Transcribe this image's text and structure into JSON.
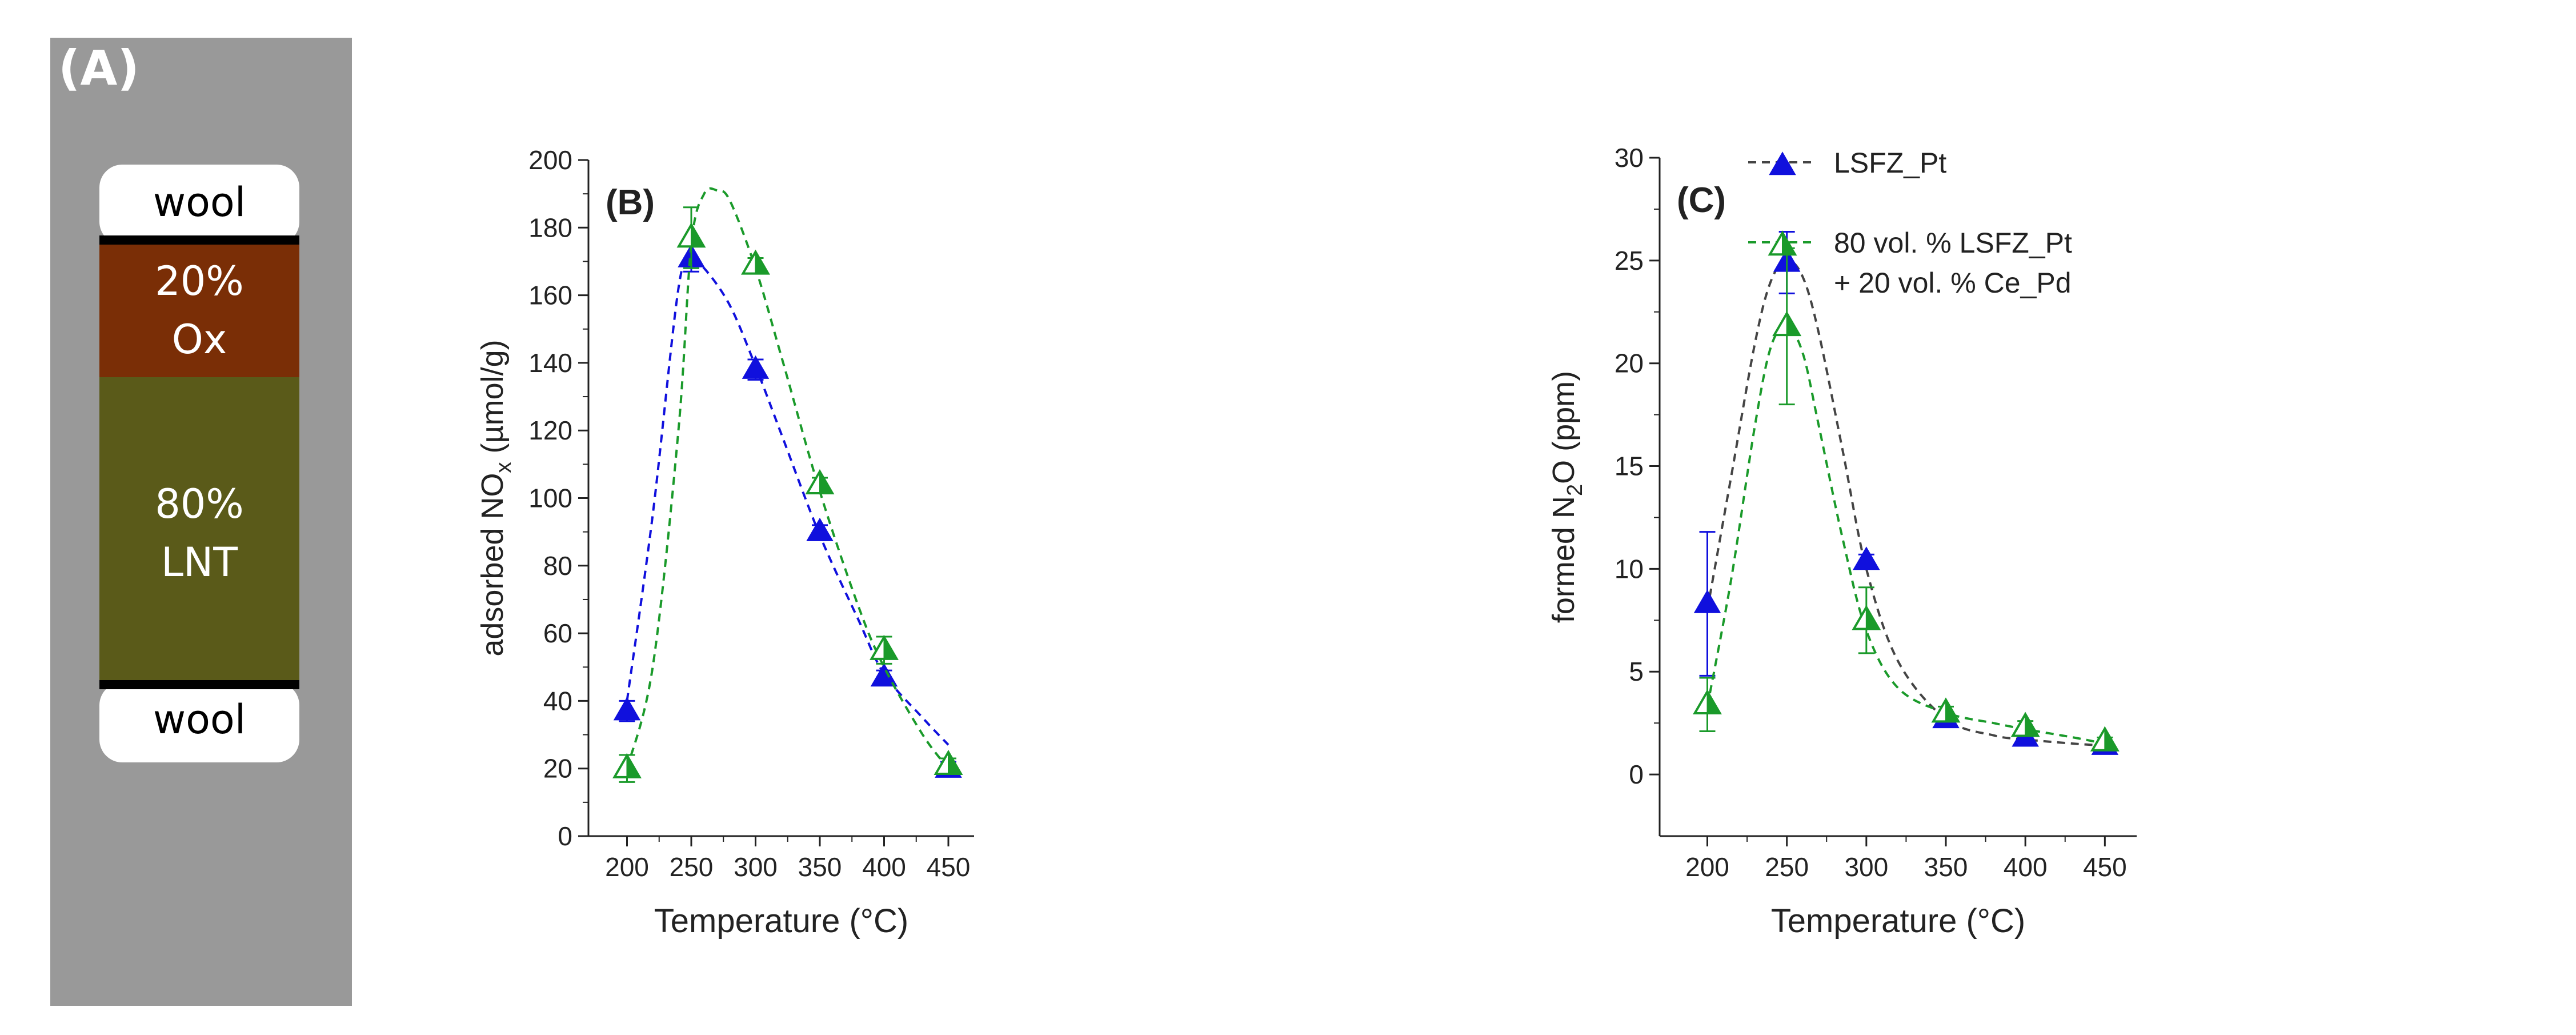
{
  "panel_a": {
    "label": "(A)",
    "top_cap": "wool",
    "ox_pct": "20%",
    "ox_label": "Ox",
    "lnt_pct": "80%",
    "lnt_label": "LNT",
    "bottom_cap": "wool",
    "colors": {
      "background": "#999999",
      "cap": "#ffffff",
      "ox": "#7a2e06",
      "lnt": "#5a5a19",
      "band": "#000000",
      "text": "#ffffff"
    }
  },
  "chart_data": [
    {
      "type": "scatter",
      "panel_label": "(B)",
      "xlabel": "Temperature (°C)",
      "ylabel_prefix": "adsorbed NO",
      "ylabel_sub": "x",
      "ylabel_suffix": " (µmol/g)",
      "xlim": [
        170,
        470
      ],
      "ylim": [
        0,
        200
      ],
      "xticks": [
        200,
        250,
        300,
        350,
        400,
        450
      ],
      "yticks": [
        0,
        20,
        40,
        60,
        80,
        100,
        120,
        140,
        160,
        180,
        200
      ],
      "series": [
        {
          "name": "LSFZ_Pt",
          "color": "#1010dd",
          "marker": "filled-triangle",
          "x": [
            200,
            250,
            300,
            350,
            400,
            450
          ],
          "y": [
            37,
            171,
            138,
            90,
            47,
            20
          ],
          "err": [
            3,
            4,
            3,
            2,
            2,
            2
          ],
          "fit_x": [
            200,
            220,
            240,
            250,
            260,
            280,
            300,
            320,
            350,
            380,
            400,
            430,
            450
          ],
          "fit_y": [
            40,
            95,
            162,
            170,
            168,
            157,
            139,
            119,
            89,
            64,
            48,
            35,
            27
          ]
        },
        {
          "name": "80 vol. % LSFZ_Pt + 20 vol. % Ce_Pd",
          "color": "#1a9a2a",
          "marker": "half-triangle",
          "x": [
            200,
            250,
            300,
            350,
            400,
            450
          ],
          "y": [
            20,
            177,
            169,
            104,
            55,
            21
          ],
          "err": [
            4,
            9,
            2,
            2,
            4,
            2
          ],
          "fit_x": [
            200,
            220,
            240,
            250,
            260,
            270,
            280,
            300,
            320,
            350,
            380,
            400,
            430,
            450
          ],
          "fit_y": [
            20,
            50,
            120,
            175,
            190,
            191,
            188,
            168,
            142,
            102,
            68,
            50,
            30,
            20
          ]
        }
      ]
    },
    {
      "type": "scatter",
      "panel_label": "(C)",
      "xlabel": "Temperature (°C)",
      "ylabel_prefix": "formed N",
      "ylabel_sub": "2",
      "ylabel_suffix": "O (ppm)",
      "xlim": [
        170,
        470
      ],
      "ylim": [
        -3,
        30
      ],
      "xticks": [
        200,
        250,
        300,
        350,
        400,
        450
      ],
      "yticks": [
        0,
        5,
        10,
        15,
        20,
        25,
        30
      ],
      "legend_position": "top-right",
      "series": [
        {
          "name": "LSFZ_Pt",
          "color": "#1010dd",
          "fit_color": "#444444",
          "marker": "filled-triangle",
          "x": [
            200,
            250,
            300,
            350,
            400,
            450
          ],
          "y": [
            8.3,
            24.9,
            10.4,
            2.7,
            1.8,
            1.4
          ],
          "err": [
            3.5,
            1.5,
            0.3,
            0.2,
            0.2,
            0.2
          ],
          "fit_x": [
            200,
            215,
            230,
            240,
            250,
            260,
            270,
            285,
            300,
            320,
            350,
            380,
            400,
            430,
            450
          ],
          "fit_y": [
            8.0,
            14.5,
            21.0,
            24.0,
            25.0,
            24.2,
            21.5,
            15.8,
            10.0,
            5.5,
            2.7,
            1.9,
            1.7,
            1.5,
            1.4
          ]
        },
        {
          "name": "80 vol. % LSFZ_Pt + 20 vol. % Ce_Pd",
          "color": "#1a9a2a",
          "fit_color": "#1a9a2a",
          "marker": "half-triangle",
          "x": [
            200,
            250,
            300,
            350,
            400,
            450
          ],
          "y": [
            3.4,
            21.8,
            7.5,
            3.0,
            2.3,
            1.6
          ],
          "err": [
            1.3,
            3.8,
            1.6,
            0.3,
            0.3,
            0.2
          ],
          "fit_x": [
            200,
            215,
            230,
            240,
            250,
            260,
            270,
            285,
            300,
            320,
            350,
            380,
            400,
            430,
            450
          ],
          "fit_y": [
            3.3,
            9.5,
            17.0,
            20.8,
            21.8,
            20.5,
            17.0,
            11.5,
            7.0,
            4.2,
            3.0,
            2.5,
            2.2,
            1.8,
            1.5
          ]
        }
      ]
    }
  ]
}
